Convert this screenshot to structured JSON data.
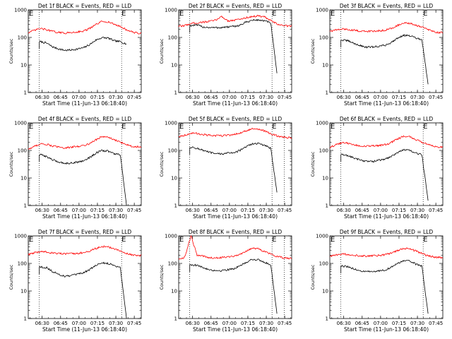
{
  "figure": {
    "xtick_labels": [
      "06:30",
      "06:45",
      "07:00",
      "07:15",
      "07:30",
      "07:45"
    ],
    "ytick_labels": [
      "1",
      "10",
      "100",
      "1000"
    ],
    "xlabel": "Start Time (11-Jun-13 06:18:40)",
    "ylabel": "Counts/sec",
    "marker_label": "E",
    "colors": {
      "events": "#000000",
      "lld": "#ff0000",
      "axes": "#000000",
      "background": "#ffffff"
    }
  },
  "chart_data": [
    {
      "type": "line",
      "title": "Det 1f BLACK = Events, RED = LLD",
      "xlabel": "Start Time (11-Jun-13 06:18:40)",
      "ylabel": "Counts/sec",
      "log_y": true,
      "ylim": [
        1,
        1000
      ],
      "xlim_minutes": [
        0,
        92
      ],
      "xtick_minutes": [
        11.33,
        26.33,
        41.33,
        56.33,
        71.33,
        86.33
      ],
      "event_markers_minutes": [
        -2,
        76
      ],
      "dotted_lines_minutes": [
        9,
        76
      ],
      "x_minutes": [
        0,
        5,
        10,
        15,
        20,
        25,
        30,
        35,
        40,
        45,
        50,
        55,
        60,
        65,
        70,
        75,
        80,
        85,
        90
      ],
      "series": [
        {
          "name": "BLACK = Events",
          "color": "#000000",
          "start_minute": 9,
          "end_minute": 80,
          "values": [
            null,
            null,
            70,
            62,
            45,
            38,
            34,
            35,
            38,
            42,
            55,
            80,
            98,
            95,
            75,
            70,
            58,
            null,
            null
          ]
        },
        {
          "name": "RED = LLD",
          "color": "#ff0000",
          "start_minute": 0,
          "end_minute": 92,
          "values": [
            150,
            180,
            210,
            190,
            165,
            150,
            145,
            150,
            160,
            170,
            210,
            290,
            380,
            370,
            300,
            250,
            190,
            155,
            140
          ]
        }
      ]
    },
    {
      "type": "line",
      "title": "Det 2f BLACK = Events, RED = LLD",
      "xlabel": "Start Time (11-Jun-13 06:18:40)",
      "ylabel": "Counts/sec",
      "log_y": true,
      "ylim": [
        1,
        1000
      ],
      "xlim_minutes": [
        0,
        92
      ],
      "xtick_minutes": [
        11.33,
        26.33,
        41.33,
        56.33,
        71.33,
        86.33
      ],
      "event_markers_minutes": [
        -2,
        76
      ],
      "dotted_lines_minutes": [
        9,
        76,
        86
      ],
      "x_minutes": [
        0,
        5,
        10,
        15,
        20,
        25,
        30,
        35,
        40,
        45,
        50,
        55,
        60,
        65,
        70,
        75,
        80,
        85,
        90
      ],
      "series": [
        {
          "name": "BLACK = Events",
          "color": "#000000",
          "start_minute": 9,
          "end_minute": 80,
          "values": [
            null,
            null,
            270,
            280,
            240,
            230,
            225,
            230,
            240,
            250,
            280,
            360,
            420,
            430,
            400,
            330,
            5,
            null,
            null
          ]
        },
        {
          "name": "RED = LLD",
          "color": "#ff0000",
          "start_minute": 0,
          "end_minute": 92,
          "values": [
            250,
            270,
            320,
            340,
            360,
            380,
            420,
            580,
            400,
            420,
            460,
            520,
            580,
            600,
            550,
            400,
            310,
            270,
            260
          ]
        }
      ]
    },
    {
      "type": "line",
      "title": "Det 3f BLACK = Events, RED = LLD",
      "xlabel": "Start Time (11-Jun-13 06:18:40)",
      "ylabel": "Counts/sec",
      "log_y": true,
      "ylim": [
        1,
        1000
      ],
      "xlim_minutes": [
        0,
        92
      ],
      "xtick_minutes": [
        11.33,
        26.33,
        41.33,
        56.33,
        71.33,
        86.33
      ],
      "event_markers_minutes": [
        -2,
        76
      ],
      "dotted_lines_minutes": [
        9,
        76
      ],
      "x_minutes": [
        0,
        5,
        10,
        15,
        20,
        25,
        30,
        35,
        40,
        45,
        50,
        55,
        60,
        65,
        70,
        75,
        80,
        85,
        90
      ],
      "series": [
        {
          "name": "BLACK = Events",
          "color": "#000000",
          "start_minute": 9,
          "end_minute": 80,
          "values": [
            null,
            null,
            80,
            75,
            60,
            50,
            44,
            45,
            48,
            52,
            65,
            95,
            120,
            115,
            95,
            80,
            2,
            null,
            null
          ]
        },
        {
          "name": "RED = LLD",
          "color": "#ff0000",
          "start_minute": 0,
          "end_minute": 92,
          "values": [
            170,
            185,
            200,
            195,
            180,
            170,
            165,
            170,
            175,
            185,
            215,
            270,
            330,
            320,
            280,
            240,
            190,
            160,
            150
          ]
        }
      ]
    },
    {
      "type": "line",
      "title": "Det 4f BLACK = Events, RED = LLD",
      "xlabel": "Start Time (11-Jun-13 06:18:40)",
      "ylabel": "Counts/sec",
      "log_y": true,
      "ylim": [
        1,
        1000
      ],
      "xlim_minutes": [
        0,
        92
      ],
      "xtick_minutes": [
        11.33,
        26.33,
        41.33,
        56.33,
        71.33,
        86.33
      ],
      "event_markers_minutes": [
        -2,
        76
      ],
      "dotted_lines_minutes": [
        9,
        76
      ],
      "x_minutes": [
        0,
        5,
        10,
        15,
        20,
        25,
        30,
        35,
        40,
        45,
        50,
        55,
        60,
        65,
        70,
        75,
        80,
        85,
        90
      ],
      "series": [
        {
          "name": "BLACK = Events",
          "color": "#000000",
          "start_minute": 9,
          "end_minute": 80,
          "values": [
            null,
            null,
            70,
            60,
            45,
            38,
            34,
            35,
            38,
            42,
            55,
            80,
            98,
            95,
            75,
            70,
            1,
            null,
            null
          ]
        },
        {
          "name": "RED = LLD",
          "color": "#ff0000",
          "start_minute": 0,
          "end_minute": 92,
          "values": [
            110,
            140,
            175,
            165,
            145,
            130,
            125,
            130,
            140,
            150,
            180,
            240,
            320,
            300,
            240,
            200,
            165,
            140,
            135
          ]
        }
      ]
    },
    {
      "type": "line",
      "title": "Det 5f BLACK = Events, RED = LLD",
      "xlabel": "Start Time (11-Jun-13 06:18:40)",
      "ylabel": "Counts/sec",
      "log_y": true,
      "ylim": [
        1,
        1000
      ],
      "xlim_minutes": [
        0,
        92
      ],
      "xtick_minutes": [
        11.33,
        26.33,
        41.33,
        56.33,
        71.33,
        86.33
      ],
      "event_markers_minutes": [
        -2,
        76
      ],
      "dotted_lines_minutes": [
        9,
        76,
        86
      ],
      "x_minutes": [
        0,
        5,
        10,
        15,
        20,
        25,
        30,
        35,
        40,
        45,
        50,
        55,
        60,
        65,
        70,
        75,
        80,
        85,
        90
      ],
      "series": [
        {
          "name": "BLACK = Events",
          "color": "#000000",
          "start_minute": 9,
          "end_minute": 80,
          "values": [
            null,
            null,
            130,
            120,
            100,
            85,
            75,
            75,
            80,
            85,
            100,
            135,
            175,
            180,
            150,
            120,
            3,
            null,
            null
          ]
        },
        {
          "name": "RED = LLD",
          "color": "#ff0000",
          "start_minute": 0,
          "end_minute": 92,
          "values": [
            320,
            360,
            420,
            410,
            380,
            350,
            340,
            345,
            360,
            380,
            430,
            520,
            600,
            590,
            500,
            400,
            340,
            300,
            290
          ]
        }
      ]
    },
    {
      "type": "line",
      "title": "Det 6f BLACK = Events, RED = LLD",
      "xlabel": "Start Time (11-Jun-13 06:18:40)",
      "ylabel": "Counts/sec",
      "log_y": true,
      "ylim": [
        1,
        1000
      ],
      "xlim_minutes": [
        0,
        92
      ],
      "xtick_minutes": [
        11.33,
        26.33,
        41.33,
        56.33,
        71.33,
        86.33
      ],
      "event_markers_minutes": [
        -2,
        76
      ],
      "dotted_lines_minutes": [
        9,
        76
      ],
      "x_minutes": [
        0,
        5,
        10,
        15,
        20,
        25,
        30,
        35,
        40,
        45,
        50,
        55,
        60,
        65,
        70,
        75,
        80,
        85,
        90
      ],
      "series": [
        {
          "name": "BLACK = Events",
          "color": "#000000",
          "start_minute": 9,
          "end_minute": 80,
          "values": [
            null,
            null,
            70,
            65,
            52,
            45,
            40,
            40,
            44,
            48,
            60,
            85,
            105,
            100,
            80,
            70,
            1.5,
            null,
            null
          ]
        },
        {
          "name": "RED = LLD",
          "color": "#ff0000",
          "start_minute": 0,
          "end_minute": 92,
          "values": [
            130,
            160,
            190,
            180,
            160,
            145,
            140,
            145,
            150,
            160,
            195,
            260,
            330,
            310,
            250,
            200,
            160,
            140,
            130
          ]
        }
      ]
    },
    {
      "type": "line",
      "title": "Det 7f BLACK = Events, RED = LLD",
      "xlabel": "Start Time (11-Jun-13 06:18:40)",
      "ylabel": "Counts/sec",
      "log_y": true,
      "ylim": [
        1,
        1000
      ],
      "xlim_minutes": [
        0,
        92
      ],
      "xtick_minutes": [
        11.33,
        26.33,
        41.33,
        56.33,
        71.33,
        86.33
      ],
      "event_markers_minutes": [
        -2,
        76
      ],
      "dotted_lines_minutes": [
        9,
        76
      ],
      "x_minutes": [
        0,
        5,
        10,
        15,
        20,
        25,
        30,
        35,
        40,
        45,
        50,
        55,
        60,
        65,
        70,
        75,
        80,
        85,
        90
      ],
      "series": [
        {
          "name": "BLACK = Events",
          "color": "#000000",
          "start_minute": 9,
          "end_minute": 80,
          "values": [
            null,
            null,
            75,
            70,
            50,
            40,
            34,
            36,
            40,
            46,
            60,
            85,
            105,
            100,
            85,
            70,
            1,
            null,
            null
          ]
        },
        {
          "name": "RED = LLD",
          "color": "#ff0000",
          "start_minute": 0,
          "end_minute": 92,
          "values": [
            210,
            240,
            270,
            260,
            240,
            230,
            220,
            225,
            235,
            245,
            280,
            350,
            410,
            400,
            340,
            280,
            230,
            200,
            195
          ]
        }
      ]
    },
    {
      "type": "line",
      "title": "Det 8f BLACK = Events, RED = LLD",
      "xlabel": "Start Time (11-Jun-13 06:18:40)",
      "ylabel": "Counts/sec",
      "log_y": true,
      "ylim": [
        1,
        1000
      ],
      "xlim_minutes": [
        0,
        92
      ],
      "xtick_minutes": [
        11.33,
        26.33,
        41.33,
        56.33,
        71.33,
        86.33
      ],
      "event_markers_minutes": [
        -2,
        76
      ],
      "dotted_lines_minutes": [
        9,
        76,
        86
      ],
      "x_minutes": [
        0,
        5,
        10,
        15,
        20,
        25,
        30,
        35,
        40,
        45,
        50,
        55,
        60,
        65,
        70,
        75,
        80,
        85,
        90
      ],
      "series": [
        {
          "name": "BLACK = Events",
          "color": "#000000",
          "start_minute": 9,
          "end_minute": 80,
          "values": [
            null,
            null,
            90,
            85,
            70,
            60,
            55,
            55,
            60,
            65,
            80,
            110,
            140,
            135,
            110,
            90,
            1.5,
            null,
            null
          ]
        },
        {
          "name": "RED = LLD",
          "color": "#ff0000",
          "start_minute": 0,
          "end_minute": 92,
          "values": [
            140,
            170,
            1000,
            200,
            180,
            165,
            160,
            165,
            175,
            185,
            215,
            280,
            360,
            340,
            270,
            220,
            180,
            160,
            155
          ]
        }
      ]
    },
    {
      "type": "line",
      "title": "Det 9f BLACK = Events, RED = LLD",
      "xlabel": "Start Time (11-Jun-13 06:18:40)",
      "ylabel": "Counts/sec",
      "log_y": true,
      "ylim": [
        1,
        1000
      ],
      "xlim_minutes": [
        0,
        92
      ],
      "xtick_minutes": [
        11.33,
        26.33,
        41.33,
        56.33,
        71.33,
        86.33
      ],
      "event_markers_minutes": [
        -2,
        76
      ],
      "dotted_lines_minutes": [
        9,
        76
      ],
      "x_minutes": [
        0,
        5,
        10,
        15,
        20,
        25,
        30,
        35,
        40,
        45,
        50,
        55,
        60,
        65,
        70,
        75,
        80,
        85,
        90
      ],
      "series": [
        {
          "name": "BLACK = Events",
          "color": "#000000",
          "start_minute": 9,
          "end_minute": 80,
          "values": [
            null,
            null,
            80,
            75,
            62,
            54,
            50,
            50,
            54,
            58,
            72,
            100,
            125,
            120,
            95,
            80,
            1.5,
            null,
            null
          ]
        },
        {
          "name": "RED = LLD",
          "color": "#ff0000",
          "start_minute": 0,
          "end_minute": 92,
          "values": [
            180,
            200,
            220,
            215,
            200,
            190,
            185,
            190,
            195,
            205,
            235,
            290,
            350,
            340,
            280,
            230,
            190,
            170,
            165
          ]
        }
      ]
    }
  ]
}
